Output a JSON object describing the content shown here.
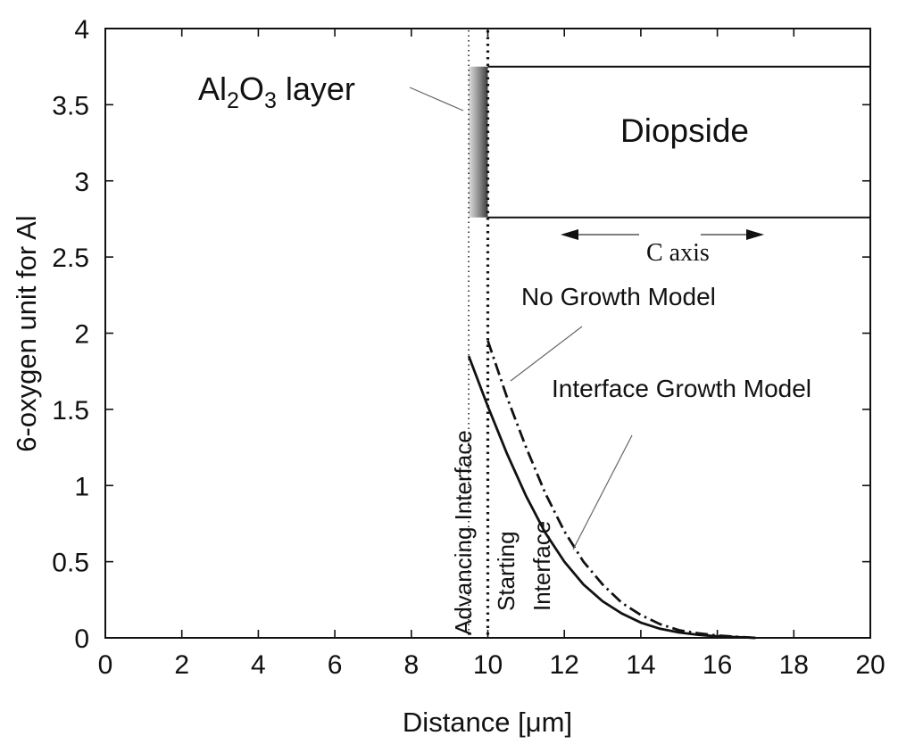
{
  "chart_data": {
    "type": "line",
    "xlabel": "Distance [μm]",
    "ylabel": "6-oxygen unit for Al",
    "xlim": [
      0,
      20
    ],
    "ylim": [
      0,
      4
    ],
    "xticks": [
      "0",
      "2",
      "4",
      "6",
      "8",
      "10",
      "12",
      "14",
      "16",
      "18",
      "20"
    ],
    "yticks": [
      "0",
      "0.5",
      "1",
      "1.5",
      "2",
      "2.5",
      "3",
      "3.5",
      "4"
    ],
    "grid": false,
    "series": [
      {
        "name": "Interface Growth Model",
        "style": "solid",
        "x": [
          9.5,
          10.0,
          10.5,
          11.0,
          11.5,
          12.0,
          12.5,
          13.0,
          13.5,
          14.0,
          14.5,
          15.0,
          15.5,
          16.0,
          16.5,
          17.0
        ],
        "y": [
          1.85,
          1.52,
          1.21,
          0.93,
          0.69,
          0.5,
          0.35,
          0.24,
          0.16,
          0.1,
          0.06,
          0.035,
          0.02,
          0.01,
          0.005,
          0.0
        ]
      },
      {
        "name": "No Growth Model",
        "style": "dash-dot",
        "x": [
          10.0,
          10.5,
          11.0,
          11.5,
          12.0,
          12.5,
          13.0,
          13.5,
          14.0,
          14.5,
          15.0,
          15.5,
          16.0,
          16.5,
          17.0
        ],
        "y": [
          1.95,
          1.58,
          1.25,
          0.95,
          0.7,
          0.5,
          0.35,
          0.23,
          0.15,
          0.09,
          0.05,
          0.03,
          0.015,
          0.007,
          0.0
        ]
      }
    ],
    "vlines": [
      {
        "label": "Advancing Interface",
        "x": 9.5,
        "style": "dotted-fine"
      },
      {
        "label": "Starting Interface",
        "x": 10.0,
        "style": "dotted-bold"
      }
    ],
    "inset": {
      "layer_label": "Al",
      "layer_sub1": "2",
      "layer_mid": "O",
      "layer_sub2": "3",
      "layer_tail": " layer",
      "crystal_label": "Diopside",
      "axis_label": "C axis",
      "box_x": [
        10.0,
        20.0
      ],
      "box_y": [
        2.76,
        3.75
      ],
      "layer_x": [
        9.5,
        10.0
      ]
    },
    "annotations": {
      "no_growth": "No Growth Model",
      "interface_growth": "Interface Growth Model",
      "advancing": "Advancing Interface",
      "starting_1": "Starting",
      "starting_2": "Interface"
    }
  }
}
